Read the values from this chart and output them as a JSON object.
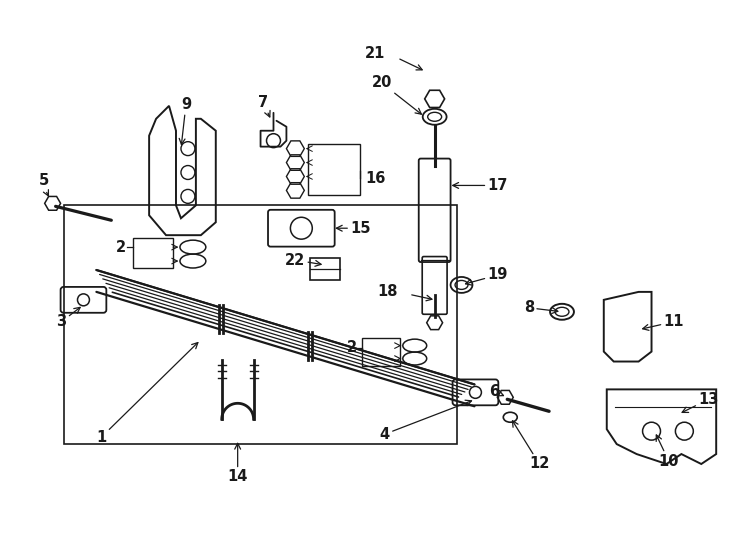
{
  "bg_color": "#ffffff",
  "line_color": "#1a1a1a",
  "lw": 1.3,
  "fig_w": 7.34,
  "fig_h": 5.4,
  "dpi": 100,
  "font_size": 10.5
}
